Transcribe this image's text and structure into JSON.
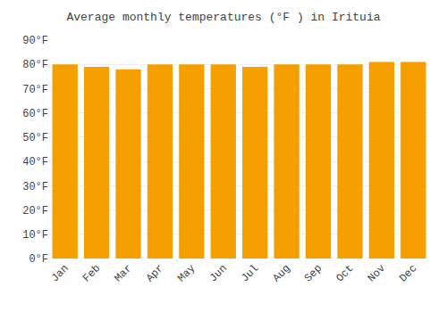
{
  "chart_data": {
    "type": "bar",
    "title": "Average monthly temperatures (°F ) in Irituia",
    "categories": [
      "Jan",
      "Feb",
      "Mar",
      "Apr",
      "May",
      "Jun",
      "Jul",
      "Aug",
      "Sep",
      "Oct",
      "Nov",
      "Dec"
    ],
    "values": [
      80,
      79,
      78,
      80,
      80,
      80,
      79,
      80,
      80,
      80,
      81,
      81
    ],
    "color": "#F5A000",
    "ylim": [
      0,
      90
    ],
    "yticks": [
      {
        "value": 0,
        "label": "0°F"
      },
      {
        "value": 10,
        "label": "10°F"
      },
      {
        "value": 20,
        "label": "20°F"
      },
      {
        "value": 30,
        "label": "30°F"
      },
      {
        "value": 40,
        "label": "40°F"
      },
      {
        "value": 50,
        "label": "50°F"
      },
      {
        "value": 60,
        "label": "60°F"
      },
      {
        "value": 70,
        "label": "70°F"
      },
      {
        "value": 80,
        "label": "80°F"
      },
      {
        "value": 90,
        "label": "90°F"
      }
    ],
    "grid": true
  }
}
